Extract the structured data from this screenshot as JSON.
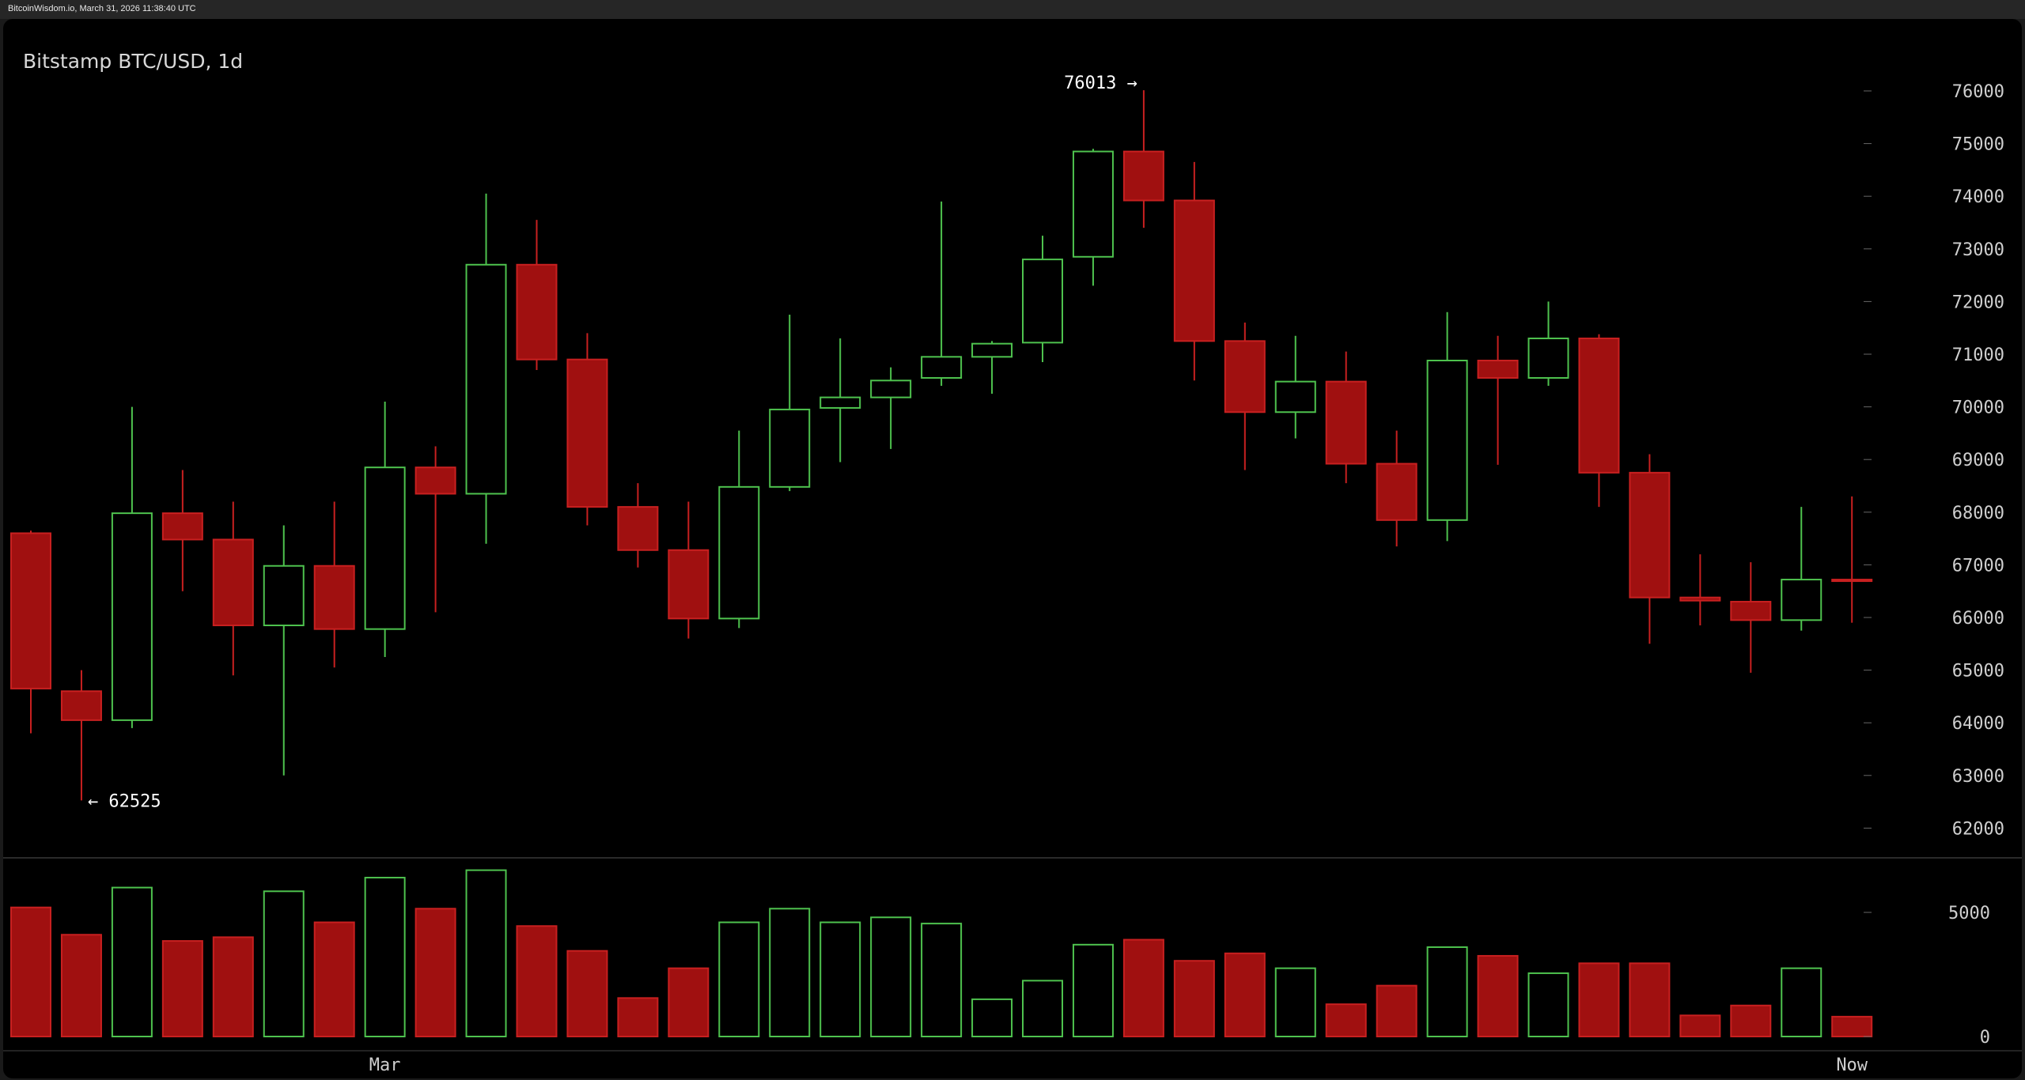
{
  "header": {
    "text": "BitcoinWisdom.io, March 31, 2026 11:38:40 UTC"
  },
  "chart_data": {
    "type": "candlestick",
    "title": "Bitstamp BTC/USD, 1d",
    "price_axis": {
      "ticks": [
        "76000",
        "75000",
        "74000",
        "73000",
        "72000",
        "71000",
        "70000",
        "69000",
        "68000",
        "67000",
        "66000",
        "65000",
        "64000",
        "63000",
        "62000"
      ],
      "ylim": [
        61500,
        77500
      ]
    },
    "volume_axis": {
      "ticks": [
        "5000",
        "0"
      ],
      "ylim": [
        0,
        7000
      ]
    },
    "x_labels": [
      {
        "label": "Mar",
        "index": 7
      },
      {
        "label": "Now",
        "index": 36
      }
    ],
    "colors": {
      "up": "#4ec24e",
      "down": "#a01010",
      "down_line": "#c82020"
    },
    "annotations": {
      "high": {
        "text": "76013 →",
        "value": 76013,
        "index": 22
      },
      "low": {
        "text": "← 62525",
        "value": 62525,
        "index": 1
      }
    },
    "candles": [
      {
        "o": 67600,
        "h": 67650,
        "l": 63800,
        "c": 64650,
        "v": 5200
      },
      {
        "o": 64600,
        "h": 65000,
        "l": 62525,
        "c": 64050,
        "v": 4100
      },
      {
        "o": 64050,
        "h": 70000,
        "l": 63900,
        "c": 67980,
        "v": 6000
      },
      {
        "o": 67980,
        "h": 68800,
        "l": 66500,
        "c": 67480,
        "v": 3850
      },
      {
        "o": 67480,
        "h": 68200,
        "l": 64900,
        "c": 65850,
        "v": 4000
      },
      {
        "o": 65850,
        "h": 67750,
        "l": 63000,
        "c": 66980,
        "v": 5850
      },
      {
        "o": 66980,
        "h": 68200,
        "l": 65050,
        "c": 65780,
        "v": 4600
      },
      {
        "o": 65780,
        "h": 70100,
        "l": 65250,
        "c": 68850,
        "v": 6400
      },
      {
        "o": 68850,
        "h": 69250,
        "l": 66100,
        "c": 68350,
        "v": 5150
      },
      {
        "o": 68350,
        "h": 74050,
        "l": 67400,
        "c": 72700,
        "v": 6700
      },
      {
        "o": 72700,
        "h": 73550,
        "l": 70700,
        "c": 70900,
        "v": 4450
      },
      {
        "o": 70900,
        "h": 71400,
        "l": 67750,
        "c": 68100,
        "v": 3450
      },
      {
        "o": 68100,
        "h": 68550,
        "l": 66950,
        "c": 67280,
        "v": 1550
      },
      {
        "o": 67280,
        "h": 68200,
        "l": 65600,
        "c": 65980,
        "v": 2750
      },
      {
        "o": 65980,
        "h": 69550,
        "l": 65800,
        "c": 68480,
        "v": 4600
      },
      {
        "o": 68480,
        "h": 71750,
        "l": 68400,
        "c": 69950,
        "v": 5150
      },
      {
        "o": 69980,
        "h": 71300,
        "l": 68950,
        "c": 70180,
        "v": 4600
      },
      {
        "o": 70180,
        "h": 70750,
        "l": 69200,
        "c": 70500,
        "v": 4800
      },
      {
        "o": 70550,
        "h": 73900,
        "l": 70400,
        "c": 70950,
        "v": 4550
      },
      {
        "o": 70950,
        "h": 71250,
        "l": 70250,
        "c": 71200,
        "v": 1500
      },
      {
        "o": 71220,
        "h": 73250,
        "l": 70850,
        "c": 72800,
        "v": 2250
      },
      {
        "o": 72850,
        "h": 74900,
        "l": 72300,
        "c": 74850,
        "v": 3700
      },
      {
        "o": 74850,
        "h": 76013,
        "l": 73400,
        "c": 73920,
        "v": 3900
      },
      {
        "o": 73920,
        "h": 74650,
        "l": 70500,
        "c": 71250,
        "v": 3050
      },
      {
        "o": 71250,
        "h": 71600,
        "l": 68800,
        "c": 69900,
        "v": 3350
      },
      {
        "o": 69900,
        "h": 71350,
        "l": 69400,
        "c": 70480,
        "v": 2750
      },
      {
        "o": 70480,
        "h": 71050,
        "l": 68550,
        "c": 68920,
        "v": 1300
      },
      {
        "o": 68920,
        "h": 69550,
        "l": 67350,
        "c": 67850,
        "v": 2050
      },
      {
        "o": 67850,
        "h": 71800,
        "l": 67450,
        "c": 70880,
        "v": 3600
      },
      {
        "o": 70880,
        "h": 71350,
        "l": 68900,
        "c": 70550,
        "v": 3250
      },
      {
        "o": 70550,
        "h": 72000,
        "l": 70400,
        "c": 71300,
        "v": 2550
      },
      {
        "o": 71300,
        "h": 71380,
        "l": 68100,
        "c": 68750,
        "v": 2950
      },
      {
        "o": 68750,
        "h": 69100,
        "l": 65500,
        "c": 66380,
        "v": 2950
      },
      {
        "o": 66380,
        "h": 67200,
        "l": 65850,
        "c": 66320,
        "v": 850
      },
      {
        "o": 66300,
        "h": 67050,
        "l": 64950,
        "c": 65950,
        "v": 1250
      },
      {
        "o": 65950,
        "h": 68100,
        "l": 65750,
        "c": 66720,
        "v": 2750
      },
      {
        "o": 66720,
        "h": 68300,
        "l": 65900,
        "c": 66700,
        "v": 800
      }
    ]
  }
}
